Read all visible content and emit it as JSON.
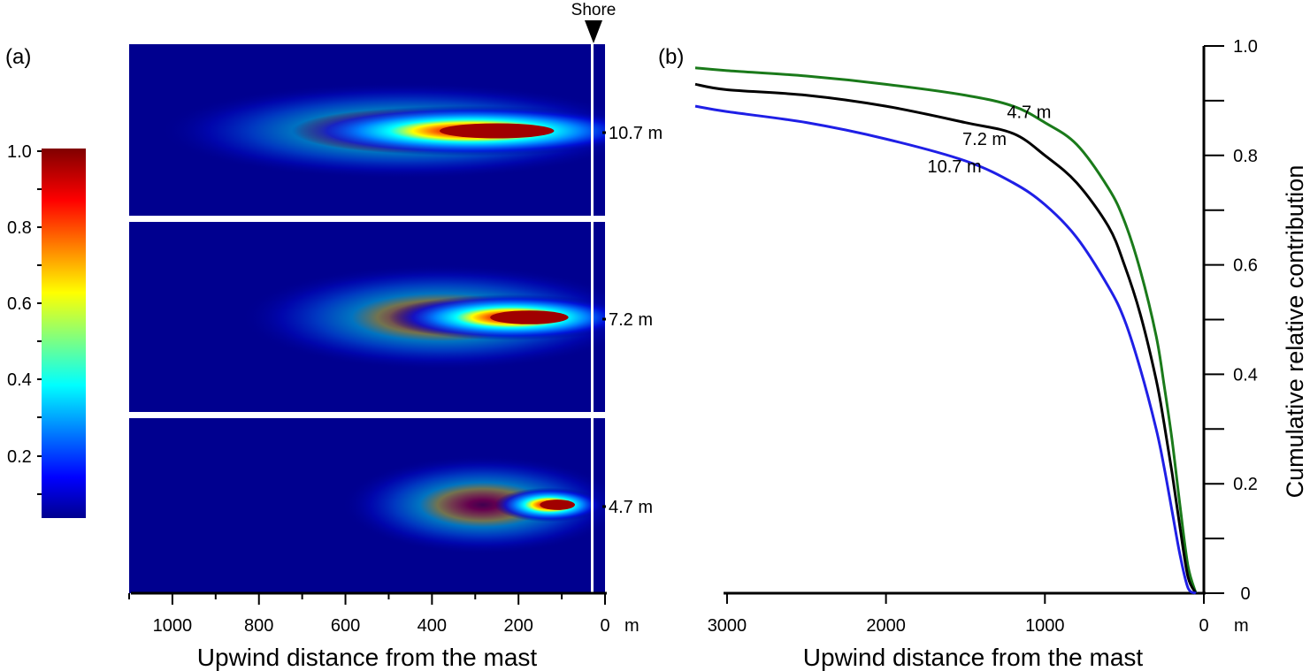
{
  "panel_a": {
    "label": "(a)",
    "shore_label": "Shore",
    "colorbar": {
      "ticks": [
        1.0,
        0.8,
        0.6,
        0.4,
        0.2
      ],
      "tick_labels": [
        "1.0",
        "0.8",
        "0.6",
        "0.4",
        "0.2"
      ]
    },
    "x_ticks": [
      1000,
      800,
      600,
      400,
      200,
      0
    ],
    "x_tick_labels": [
      "1000",
      "800",
      "600",
      "400",
      "200",
      "0"
    ],
    "x_unit": "m",
    "xlabel": "Upwind distance from the mast",
    "footprints": [
      {
        "height_label": "10.7 m",
        "peak_distance": 250,
        "extent": 1100
      },
      {
        "height_label": "7.2 m",
        "peak_distance": 175,
        "extent": 900
      },
      {
        "height_label": "4.7 m",
        "peak_distance": 110,
        "extent": 650
      }
    ]
  },
  "panel_b": {
    "label": "(b)",
    "x_tick_labels": [
      "3000",
      "2000",
      "1000",
      "0"
    ],
    "x_unit": "m",
    "xlabel": "Upwind distance from the mast",
    "ylabel": "Cumulative relative contribution",
    "y_tick_labels": [
      "0",
      "0.2",
      "0.4",
      "0.6",
      "0.8",
      "1.0"
    ]
  },
  "chart_data": [
    {
      "type": "heatmap",
      "panel": "(a)",
      "xlabel": "Upwind distance from the mast",
      "x_unit": "m",
      "xlim": [
        1100,
        0
      ],
      "colorbar_range": [
        0,
        1.0
      ],
      "colormap": "jet",
      "rows": [
        {
          "name": "10.7 m",
          "peak_x": 250,
          "peak_value": 1.0
        },
        {
          "name": "7.2 m",
          "peak_x": 175,
          "peak_value": 1.0
        },
        {
          "name": "4.7 m",
          "peak_x": 110,
          "peak_value": 1.0
        }
      ]
    },
    {
      "type": "line",
      "panel": "(b)",
      "xlabel": "Upwind distance from the mast",
      "ylabel": "Cumulative relative contribution",
      "x_unit": "m",
      "xlim": [
        3200,
        0
      ],
      "ylim": [
        0,
        1.0
      ],
      "x": [
        3200,
        3000,
        2500,
        2000,
        1500,
        1200,
        1000,
        800,
        600,
        500,
        400,
        300,
        250,
        200,
        150,
        100,
        50
      ],
      "series": [
        {
          "name": "4.7 m",
          "color": "#1a7a1a",
          "values": [
            0.96,
            0.955,
            0.945,
            0.93,
            0.91,
            0.89,
            0.86,
            0.82,
            0.74,
            0.68,
            0.59,
            0.47,
            0.38,
            0.28,
            0.16,
            0.05,
            0.0
          ]
        },
        {
          "name": "7.2 m",
          "color": "#000000",
          "values": [
            0.93,
            0.92,
            0.91,
            0.89,
            0.86,
            0.84,
            0.8,
            0.75,
            0.67,
            0.6,
            0.51,
            0.39,
            0.31,
            0.22,
            0.12,
            0.03,
            0.0
          ]
        },
        {
          "name": "10.7 m",
          "color": "#1f1fe6",
          "values": [
            0.89,
            0.88,
            0.86,
            0.83,
            0.79,
            0.75,
            0.71,
            0.65,
            0.56,
            0.5,
            0.41,
            0.3,
            0.23,
            0.15,
            0.07,
            0.01,
            0.0
          ]
        }
      ],
      "annotations": [
        {
          "text": "4.7 m",
          "x": 1050,
          "y": 0.88
        },
        {
          "text": "7.2 m",
          "x": 1330,
          "y": 0.83
        },
        {
          "text": "10.7 m",
          "x": 1550,
          "y": 0.78
        }
      ]
    }
  ]
}
